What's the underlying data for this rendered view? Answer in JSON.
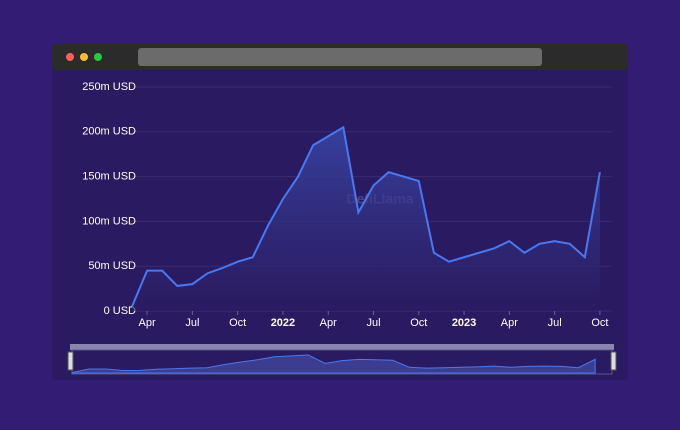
{
  "chart_data": {
    "type": "area",
    "watermark": "DefiLlama",
    "x": [
      "2021-03",
      "2021-04",
      "2021-05",
      "2021-06",
      "2021-07",
      "2021-08",
      "2021-09",
      "2021-10",
      "2021-11",
      "2021-12",
      "2022-01",
      "2022-02",
      "2022-03",
      "2022-04",
      "2022-05",
      "2022-06",
      "2022-07",
      "2022-08",
      "2022-09",
      "2022-10",
      "2022-11",
      "2022-12",
      "2023-01",
      "2023-02",
      "2023-03",
      "2023-04",
      "2023-05",
      "2023-06",
      "2023-07",
      "2023-08",
      "2023-09",
      "2023-10"
    ],
    "series": [
      {
        "color": "#4a78f0",
        "values": [
          5000000,
          45000000,
          45000000,
          28000000,
          30000000,
          42000000,
          48000000,
          55000000,
          60000000,
          95000000,
          125000000,
          150000000,
          185000000,
          195000000,
          205000000,
          110000000,
          140000000,
          155000000,
          150000000,
          145000000,
          65000000,
          55000000,
          60000000,
          65000000,
          70000000,
          78000000,
          65000000,
          75000000,
          78000000,
          75000000,
          60000000,
          155000000
        ]
      }
    ],
    "xlim": [
      "2021-03",
      "2023-11"
    ],
    "xticks": [
      {
        "value": "2021-04",
        "label": "Apr"
      },
      {
        "value": "2021-07",
        "label": "Jul"
      },
      {
        "value": "2021-10",
        "label": "Oct"
      },
      {
        "value": "2022-01",
        "label": "2022"
      },
      {
        "value": "2022-04",
        "label": "Apr"
      },
      {
        "value": "2022-07",
        "label": "Jul"
      },
      {
        "value": "2022-10",
        "label": "Oct"
      },
      {
        "value": "2023-01",
        "label": "2023"
      },
      {
        "value": "2023-04",
        "label": "Apr"
      },
      {
        "value": "2023-07",
        "label": "Jul"
      },
      {
        "value": "2023-10",
        "label": "Oct"
      }
    ],
    "ylim": [
      0,
      250000000
    ],
    "yticks": [
      {
        "value": 0,
        "label": "0 USD"
      },
      {
        "value": 50000000,
        "label": "50m USD"
      },
      {
        "value": 100000000,
        "label": "100m USD"
      },
      {
        "value": 150000000,
        "label": "150m USD"
      },
      {
        "value": 200000000,
        "label": "200m USD"
      },
      {
        "value": 250000000,
        "label": "250m USD"
      }
    ],
    "grid": true
  }
}
